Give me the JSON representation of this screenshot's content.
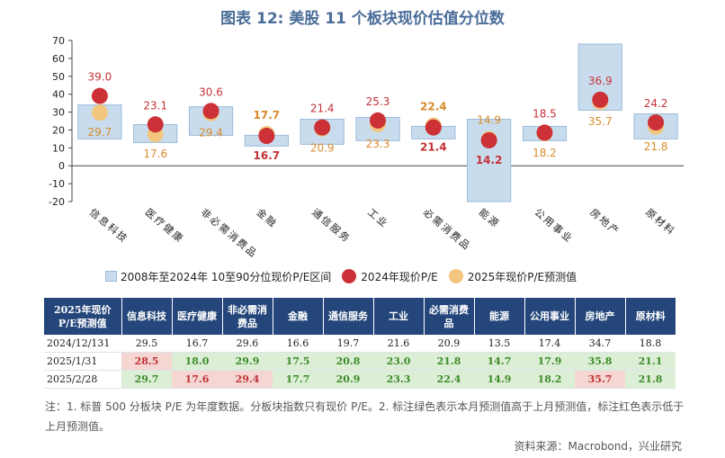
{
  "title": "图表 12: 美股 11 个板块现价估值分位数",
  "chart_data": {
    "type": "range-scatter",
    "categories": [
      "信息科技",
      "医疗健康",
      "非必需消费品",
      "金融",
      "通信服务",
      "工业",
      "必需消费品",
      "能源",
      "公用事业",
      "房地产",
      "原材料"
    ],
    "range_low": [
      15,
      13,
      17,
      11,
      12,
      14,
      15,
      -20,
      14,
      31,
      15
    ],
    "range_high": [
      34,
      23,
      33,
      17,
      26,
      27,
      22,
      26,
      22,
      68,
      29
    ],
    "series": [
      {
        "name": "2024年现价P/E",
        "values": [
          39.0,
          23.1,
          30.6,
          16.7,
          21.4,
          25.3,
          21.4,
          14.2,
          18.5,
          36.9,
          24.2
        ],
        "color": "#cc3137"
      },
      {
        "name": "2025年现价P/E预测值",
        "values": [
          29.7,
          17.6,
          29.4,
          17.7,
          20.9,
          23.3,
          22.4,
          14.9,
          18.2,
          35.7,
          21.8
        ],
        "color": "#f2c67e"
      }
    ],
    "labels": [
      {
        "text": "39.0",
        "color": "#c53237",
        "bold": false
      },
      {
        "text": "29.7",
        "color": "#d98b2b",
        "bold": false
      },
      {
        "text": "23.1",
        "color": "#c53237",
        "bold": false
      },
      {
        "text": "17.6",
        "color": "#d98b2b",
        "bold": false
      },
      {
        "text": "30.6",
        "color": "#c53237",
        "bold": false
      },
      {
        "text": "29.4",
        "color": "#d98b2b",
        "bold": false
      },
      {
        "text": "17.7",
        "color": "#d98b2b",
        "bold": true
      },
      {
        "text": "16.7",
        "color": "#c53237",
        "bold": true
      },
      {
        "text": "21.4",
        "color": "#c53237",
        "bold": false
      },
      {
        "text": "20.9",
        "color": "#d98b2b",
        "bold": false
      },
      {
        "text": "25.3",
        "color": "#c53237",
        "bold": false
      },
      {
        "text": "23.3",
        "color": "#d98b2b",
        "bold": false
      },
      {
        "text": "22.4",
        "color": "#d98b2b",
        "bold": true
      },
      {
        "text": "21.4",
        "color": "#c53237",
        "bold": true
      },
      {
        "text": "14.9",
        "color": "#d98b2b",
        "bold": false
      },
      {
        "text": "14.2",
        "color": "#c53237",
        "bold": true
      },
      {
        "text": "18.5",
        "color": "#c53237",
        "bold": false
      },
      {
        "text": "18.2",
        "color": "#d98b2b",
        "bold": false
      },
      {
        "text": "36.9",
        "color": "#c53237",
        "bold": false
      },
      {
        "text": "35.7",
        "color": "#d98b2b",
        "bold": false
      },
      {
        "text": "24.2",
        "color": "#c53237",
        "bold": false
      },
      {
        "text": "21.8",
        "color": "#d98b2b",
        "bold": false
      }
    ],
    "y_ticks": [
      "70",
      "60",
      "50",
      "40",
      "30",
      "20",
      "10",
      "0",
      "-10",
      "-20"
    ],
    "ylim": [
      -20,
      70
    ],
    "range_color": "#c9dcee",
    "range_border": "#9cbbdb"
  },
  "legend": {
    "range": "2008年至2024年  10至90分位现价P/E区间",
    "pe2024": "2024年现价P/E",
    "pe2025": "2025年现价P/E预测值"
  },
  "table": {
    "header": [
      "2025年现价P/E预测值",
      "信息科技",
      "医疗健康",
      "非必需消费品",
      "金融",
      "通信服务",
      "工业",
      "必需消费品",
      "能源",
      "公用事业",
      "房地产",
      "原材料"
    ],
    "rows": [
      {
        "label": "2024/12/131",
        "cells": [
          {
            "v": "29.5",
            "c": ""
          },
          {
            "v": "16.7",
            "c": ""
          },
          {
            "v": "29.6",
            "c": ""
          },
          {
            "v": "16.6",
            "c": ""
          },
          {
            "v": "19.7",
            "c": ""
          },
          {
            "v": "21.6",
            "c": ""
          },
          {
            "v": "20.9",
            "c": ""
          },
          {
            "v": "13.5",
            "c": ""
          },
          {
            "v": "17.4",
            "c": ""
          },
          {
            "v": "34.7",
            "c": ""
          },
          {
            "v": "18.8",
            "c": ""
          }
        ]
      },
      {
        "label": "2025/1/31",
        "cells": [
          {
            "v": "28.5",
            "c": "r"
          },
          {
            "v": "18.0",
            "c": "g"
          },
          {
            "v": "29.9",
            "c": "g"
          },
          {
            "v": "17.5",
            "c": "g"
          },
          {
            "v": "20.8",
            "c": "g"
          },
          {
            "v": "23.0",
            "c": "g"
          },
          {
            "v": "21.8",
            "c": "g"
          },
          {
            "v": "14.7",
            "c": "g"
          },
          {
            "v": "17.9",
            "c": "g"
          },
          {
            "v": "35.8",
            "c": "g"
          },
          {
            "v": "21.1",
            "c": "g"
          }
        ]
      },
      {
        "label": "2025/2/28",
        "cells": [
          {
            "v": "29.7",
            "c": "g"
          },
          {
            "v": "17.6",
            "c": "r"
          },
          {
            "v": "29.4",
            "c": "r"
          },
          {
            "v": "17.7",
            "c": "g"
          },
          {
            "v": "20.9",
            "c": "g"
          },
          {
            "v": "23.3",
            "c": "g"
          },
          {
            "v": "22.4",
            "c": "g"
          },
          {
            "v": "14.9",
            "c": "g"
          },
          {
            "v": "18.2",
            "c": "g"
          },
          {
            "v": "35.7",
            "c": "r"
          },
          {
            "v": "21.8",
            "c": "g"
          }
        ]
      }
    ]
  },
  "note": "注：1. 标普 500 分板块 P/E 为年度数据。分板块指数只有现价 P/E。2. 标注绿色表示本月预测值高于上月预测值，标注红色表示低于上月预测值。",
  "source": "资料来源：Macrobond，兴业研究"
}
